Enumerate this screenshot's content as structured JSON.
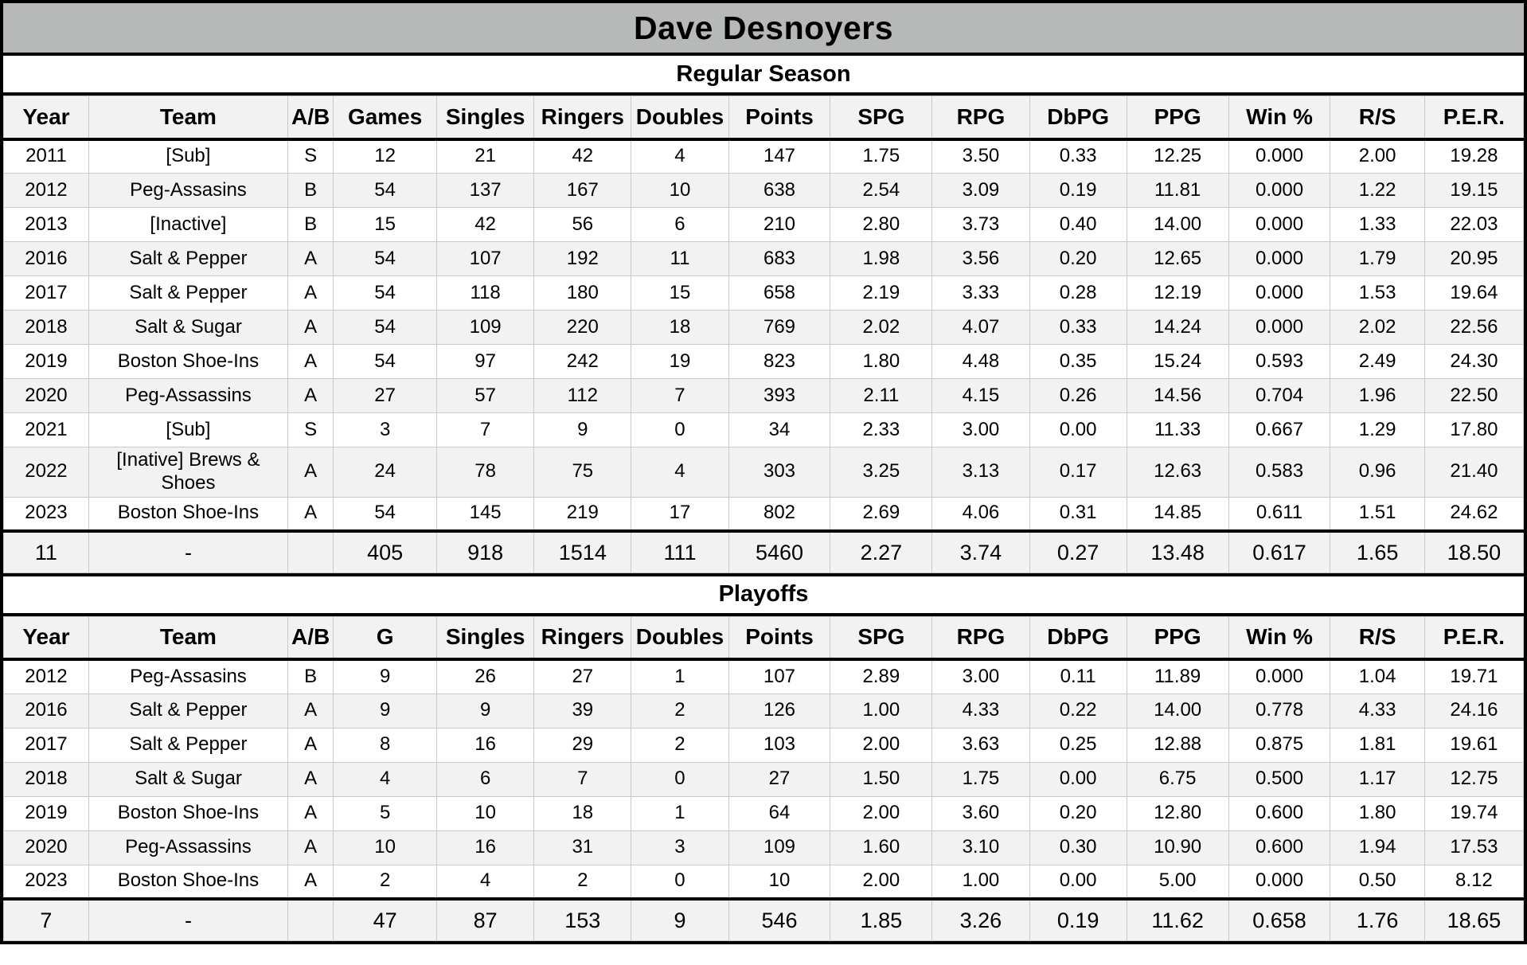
{
  "page_title": "Dave Desnoyers",
  "colors": {
    "title_bar_bg": "#b7b9b8",
    "stripe_bg": "#f2f2f2",
    "header_bg": "#f2f2f2",
    "border_black": "#000000",
    "cell_border": "#c9c9c9",
    "text": "#000000"
  },
  "sections": [
    {
      "id": "regular_season",
      "title": "Regular Season",
      "columns": [
        "Year",
        "Team",
        "A/B",
        "Games",
        "Singles",
        "Ringers",
        "Doubles",
        "Points",
        "SPG",
        "RPG",
        "DbPG",
        "PPG",
        "Win %",
        "R/S",
        "P.E.R."
      ],
      "rows": [
        [
          "2011",
          "[Sub]",
          "S",
          "12",
          "21",
          "42",
          "4",
          "147",
          "1.75",
          "3.50",
          "0.33",
          "12.25",
          "0.000",
          "2.00",
          "19.28"
        ],
        [
          "2012",
          "Peg-Assasins",
          "B",
          "54",
          "137",
          "167",
          "10",
          "638",
          "2.54",
          "3.09",
          "0.19",
          "11.81",
          "0.000",
          "1.22",
          "19.15"
        ],
        [
          "2013",
          "[Inactive]",
          "B",
          "15",
          "42",
          "56",
          "6",
          "210",
          "2.80",
          "3.73",
          "0.40",
          "14.00",
          "0.000",
          "1.33",
          "22.03"
        ],
        [
          "2016",
          "Salt & Pepper",
          "A",
          "54",
          "107",
          "192",
          "11",
          "683",
          "1.98",
          "3.56",
          "0.20",
          "12.65",
          "0.000",
          "1.79",
          "20.95"
        ],
        [
          "2017",
          "Salt & Pepper",
          "A",
          "54",
          "118",
          "180",
          "15",
          "658",
          "2.19",
          "3.33",
          "0.28",
          "12.19",
          "0.000",
          "1.53",
          "19.64"
        ],
        [
          "2018",
          "Salt & Sugar",
          "A",
          "54",
          "109",
          "220",
          "18",
          "769",
          "2.02",
          "4.07",
          "0.33",
          "14.24",
          "0.000",
          "2.02",
          "22.56"
        ],
        [
          "2019",
          "Boston Shoe-Ins",
          "A",
          "54",
          "97",
          "242",
          "19",
          "823",
          "1.80",
          "4.48",
          "0.35",
          "15.24",
          "0.593",
          "2.49",
          "24.30"
        ],
        [
          "2020",
          "Peg-Assassins",
          "A",
          "27",
          "57",
          "112",
          "7",
          "393",
          "2.11",
          "4.15",
          "0.26",
          "14.56",
          "0.704",
          "1.96",
          "22.50"
        ],
        [
          "2021",
          "[Sub]",
          "S",
          "3",
          "7",
          "9",
          "0",
          "34",
          "2.33",
          "3.00",
          "0.00",
          "11.33",
          "0.667",
          "1.29",
          "17.80"
        ],
        [
          "2022",
          "[Inative] Brews & Shoes",
          "A",
          "24",
          "78",
          "75",
          "4",
          "303",
          "3.25",
          "3.13",
          "0.17",
          "12.63",
          "0.583",
          "0.96",
          "21.40"
        ],
        [
          "2023",
          "Boston Shoe-Ins",
          "A",
          "54",
          "145",
          "219",
          "17",
          "802",
          "2.69",
          "4.06",
          "0.31",
          "14.85",
          "0.611",
          "1.51",
          "24.62"
        ]
      ],
      "total": [
        "11",
        "-",
        "",
        "405",
        "918",
        "1514",
        "111",
        "5460",
        "2.27",
        "3.74",
        "0.27",
        "13.48",
        "0.617",
        "1.65",
        "18.50"
      ]
    },
    {
      "id": "playoffs",
      "title": "Playoffs",
      "columns": [
        "Year",
        "Team",
        "A/B",
        "G",
        "Singles",
        "Ringers",
        "Doubles",
        "Points",
        "SPG",
        "RPG",
        "DbPG",
        "PPG",
        "Win %",
        "R/S",
        "P.E.R."
      ],
      "rows": [
        [
          "2012",
          "Peg-Assasins",
          "B",
          "9",
          "26",
          "27",
          "1",
          "107",
          "2.89",
          "3.00",
          "0.11",
          "11.89",
          "0.000",
          "1.04",
          "19.71"
        ],
        [
          "2016",
          "Salt & Pepper",
          "A",
          "9",
          "9",
          "39",
          "2",
          "126",
          "1.00",
          "4.33",
          "0.22",
          "14.00",
          "0.778",
          "4.33",
          "24.16"
        ],
        [
          "2017",
          "Salt & Pepper",
          "A",
          "8",
          "16",
          "29",
          "2",
          "103",
          "2.00",
          "3.63",
          "0.25",
          "12.88",
          "0.875",
          "1.81",
          "19.61"
        ],
        [
          "2018",
          "Salt & Sugar",
          "A",
          "4",
          "6",
          "7",
          "0",
          "27",
          "1.50",
          "1.75",
          "0.00",
          "6.75",
          "0.500",
          "1.17",
          "12.75"
        ],
        [
          "2019",
          "Boston Shoe-Ins",
          "A",
          "5",
          "10",
          "18",
          "1",
          "64",
          "2.00",
          "3.60",
          "0.20",
          "12.80",
          "0.600",
          "1.80",
          "19.74"
        ],
        [
          "2020",
          "Peg-Assassins",
          "A",
          "10",
          "16",
          "31",
          "3",
          "109",
          "1.60",
          "3.10",
          "0.30",
          "10.90",
          "0.600",
          "1.94",
          "17.53"
        ],
        [
          "2023",
          "Boston Shoe-Ins",
          "A",
          "2",
          "4",
          "2",
          "0",
          "10",
          "2.00",
          "1.00",
          "0.00",
          "5.00",
          "0.000",
          "0.50",
          "8.12"
        ]
      ],
      "total": [
        "7",
        "-",
        "",
        "47",
        "87",
        "153",
        "9",
        "546",
        "1.85",
        "3.26",
        "0.19",
        "11.62",
        "0.658",
        "1.76",
        "18.65"
      ]
    }
  ]
}
